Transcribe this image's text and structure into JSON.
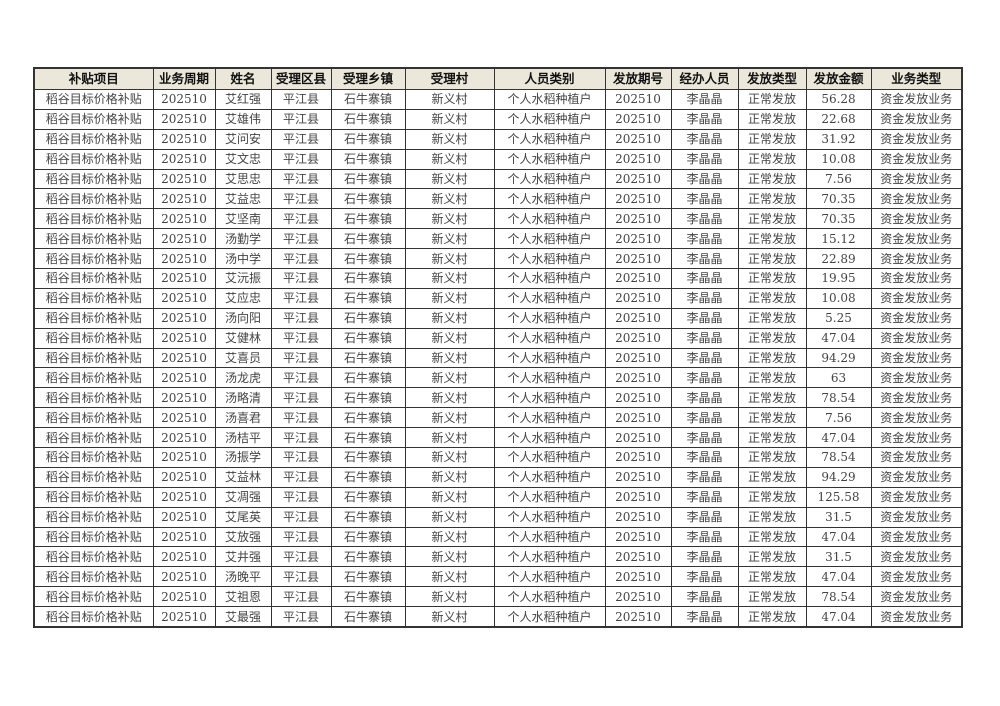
{
  "table": {
    "headers": [
      "补贴项目",
      "业务周期",
      "姓名",
      "受理区县",
      "受理乡镇",
      "受理村",
      "人员类别",
      "发放期号",
      "经办人员",
      "发放类型",
      "发放金额",
      "业务类型"
    ],
    "common": {
      "project": "稻谷目标价格补贴",
      "period": "202510",
      "county": "平江县",
      "town": "石牛寨镇",
      "village": "新义村",
      "category": "个人水稻种植户",
      "issue": "202510",
      "operator": "李晶晶",
      "pay_type": "正常发放",
      "biz_type": "资金发放业务"
    },
    "rows": [
      {
        "name": "艾红强",
        "amount": "56.28"
      },
      {
        "name": "艾雄伟",
        "amount": "22.68"
      },
      {
        "name": "艾问安",
        "amount": "31.92"
      },
      {
        "name": "艾文忠",
        "amount": "10.08"
      },
      {
        "name": "艾思忠",
        "amount": "7.56"
      },
      {
        "name": "艾益忠",
        "amount": "70.35"
      },
      {
        "name": "艾坚南",
        "amount": "70.35"
      },
      {
        "name": "汤勤学",
        "amount": "15.12"
      },
      {
        "name": "汤中学",
        "amount": "22.89"
      },
      {
        "name": "艾沅振",
        "amount": "19.95"
      },
      {
        "name": "艾应忠",
        "amount": "10.08"
      },
      {
        "name": "汤向阳",
        "amount": "5.25"
      },
      {
        "name": "艾健林",
        "amount": "47.04"
      },
      {
        "name": "艾喜员",
        "amount": "94.29"
      },
      {
        "name": "汤龙虎",
        "amount": "63"
      },
      {
        "name": "汤略清",
        "amount": "78.54"
      },
      {
        "name": "汤喜君",
        "amount": "7.56"
      },
      {
        "name": "汤桔平",
        "amount": "47.04"
      },
      {
        "name": "汤振学",
        "amount": "78.54"
      },
      {
        "name": "艾益林",
        "amount": "94.29"
      },
      {
        "name": "艾凋强",
        "amount": "125.58"
      },
      {
        "name": "艾尾英",
        "amount": "31.5"
      },
      {
        "name": "艾放强",
        "amount": "47.04"
      },
      {
        "name": "艾井强",
        "amount": "31.5"
      },
      {
        "name": "汤晚平",
        "amount": "47.04"
      },
      {
        "name": "艾祖恩",
        "amount": "78.54"
      },
      {
        "name": "艾最强",
        "amount": "47.04"
      }
    ]
  }
}
